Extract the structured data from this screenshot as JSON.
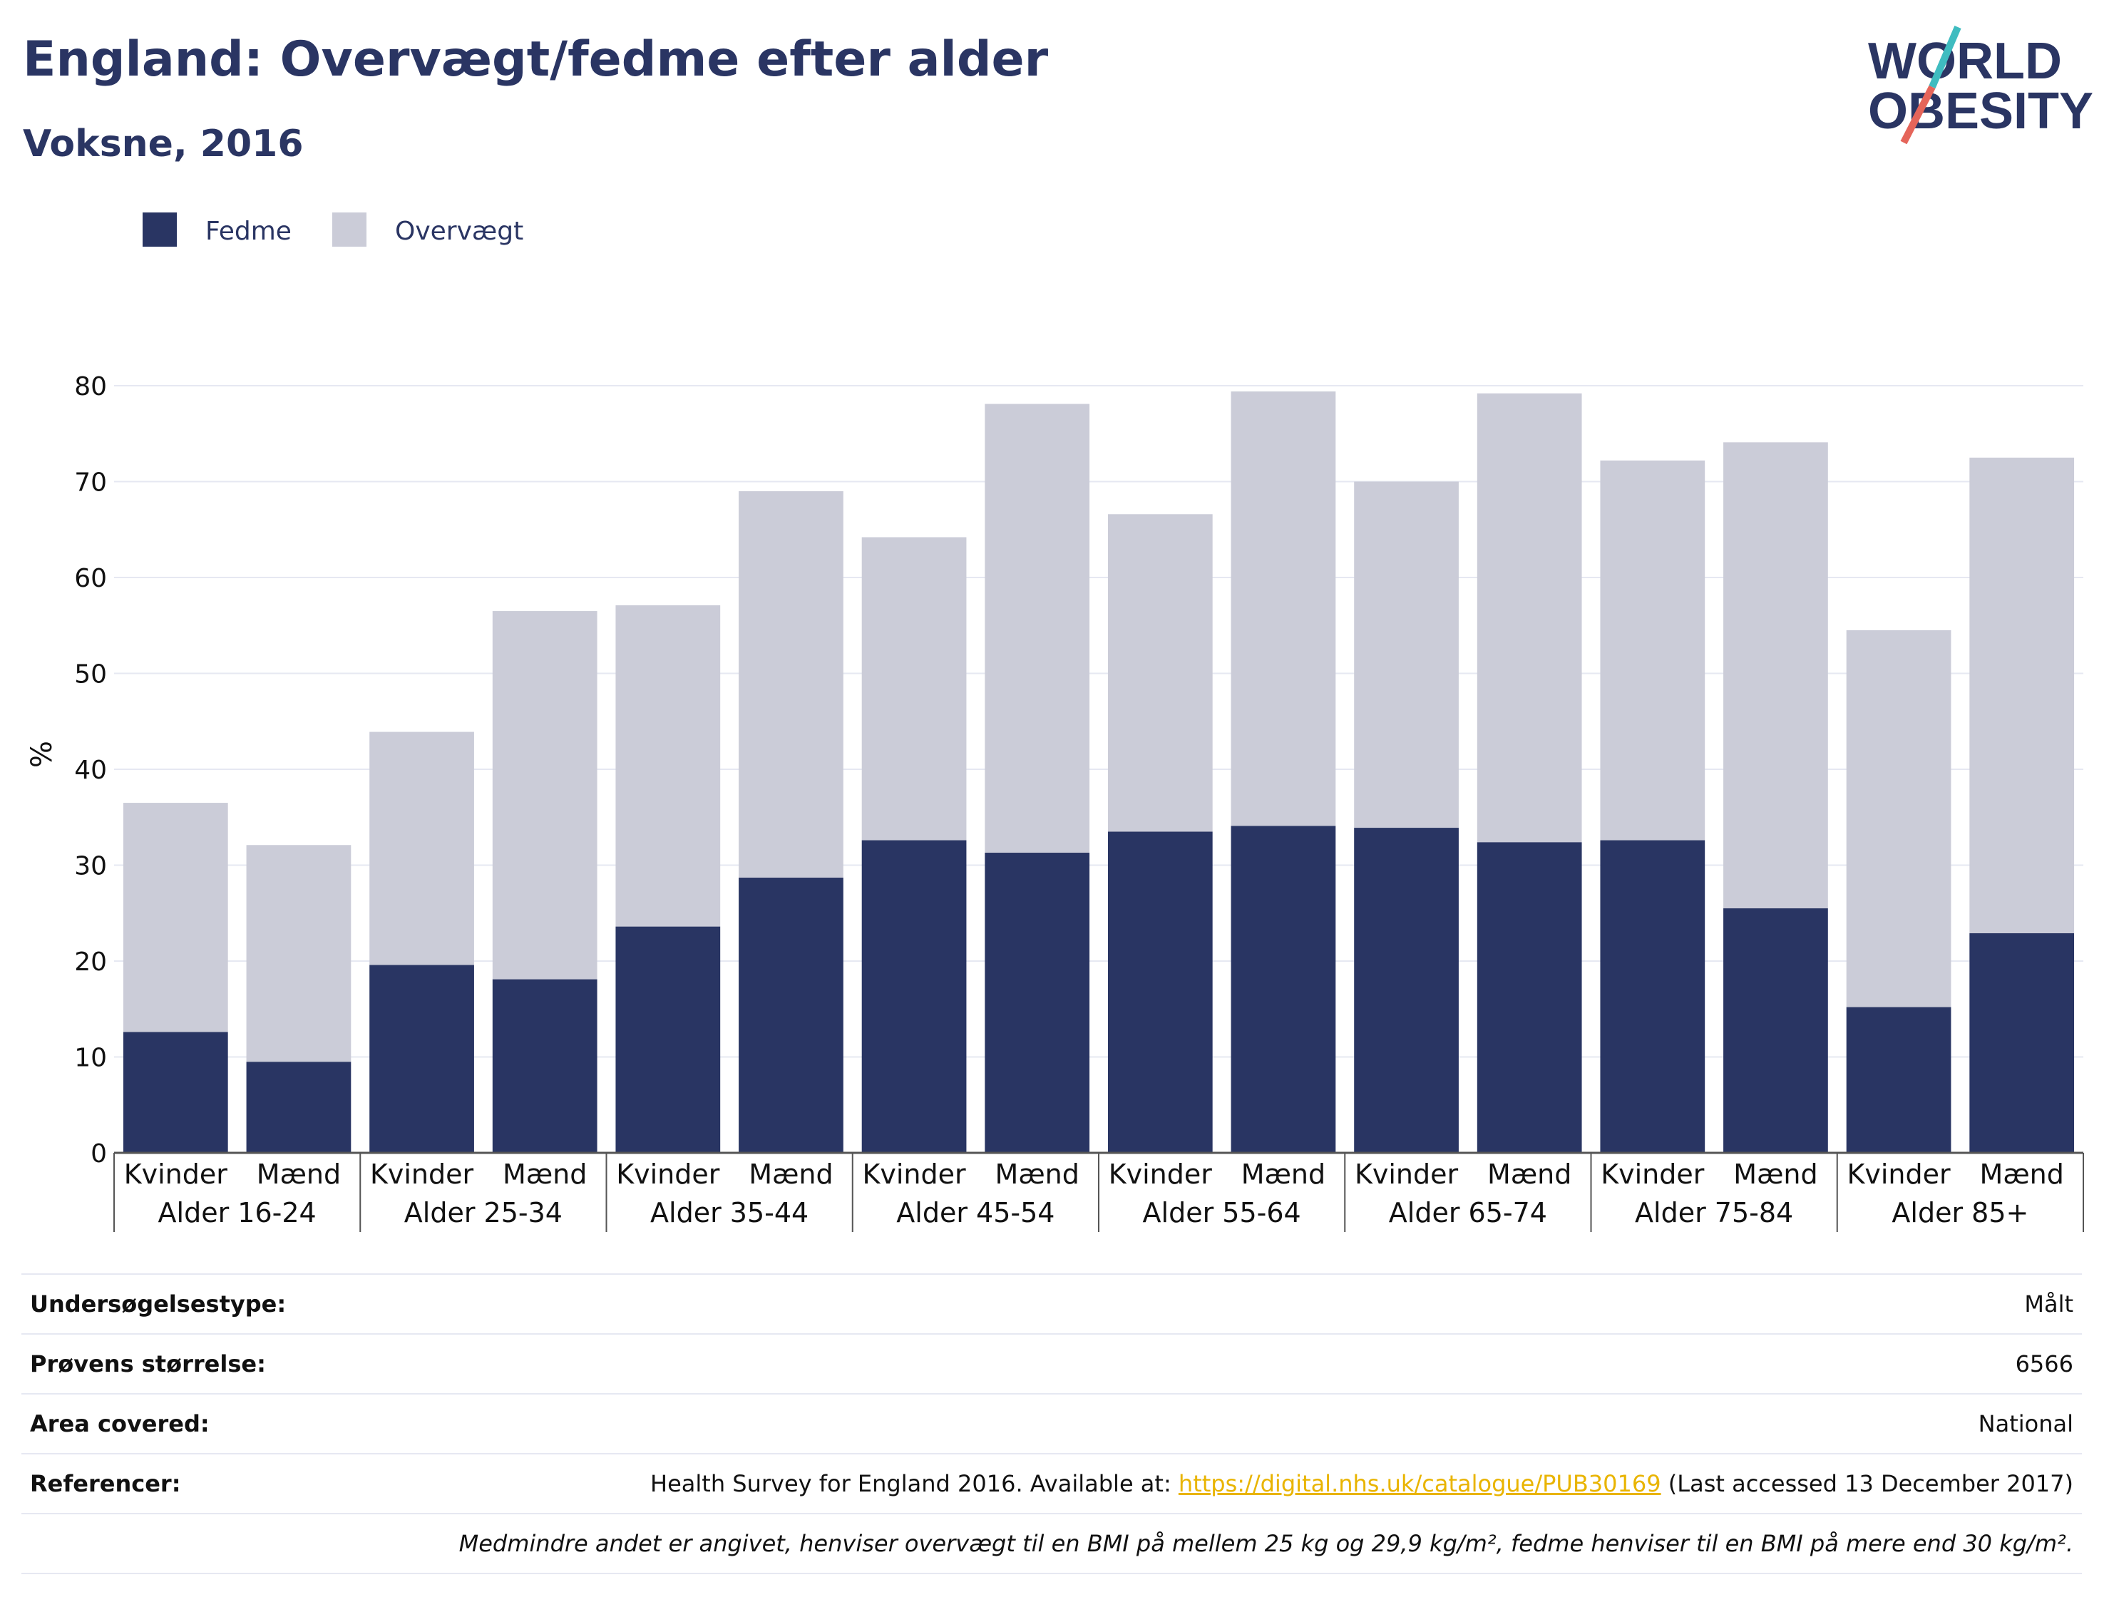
{
  "header": {
    "title": "England: Overvægt/fedme efter alder",
    "subtitle": "Voksne, 2016"
  },
  "logo": {
    "line1": "WORLD",
    "line2": "OBESITY",
    "colors": [
      "#3fbcc0",
      "#e5655a"
    ]
  },
  "chart_data": {
    "type": "bar",
    "stacked": true,
    "ylabel": "%",
    "ylim": [
      0,
      80
    ],
    "yticks": [
      0,
      10,
      20,
      30,
      40,
      50,
      60,
      70,
      80
    ],
    "grid": true,
    "legend_position": "top-left",
    "groups": [
      "Alder 16-24",
      "Alder 25-34",
      "Alder 35-44",
      "Alder 45-54",
      "Alder 55-64",
      "Alder 65-74",
      "Alder 75-84",
      "Alder 85+"
    ],
    "subcategories": [
      "Kvinder",
      "Mænd"
    ],
    "series": [
      {
        "name": "Fedme",
        "color": "#293563",
        "values": [
          12.6,
          9.5,
          19.6,
          18.1,
          23.6,
          28.7,
          32.6,
          31.3,
          33.5,
          34.1,
          33.9,
          32.4,
          32.6,
          25.5,
          15.2,
          22.9
        ]
      },
      {
        "name": "Overvægt",
        "color": "#cbccd8",
        "values": [
          23.9,
          22.6,
          24.3,
          38.4,
          33.5,
          40.3,
          31.6,
          46.8,
          33.1,
          45.3,
          36.1,
          46.8,
          39.6,
          48.6,
          39.3,
          49.6
        ]
      }
    ]
  },
  "meta": {
    "survey_type": {
      "label": "Undersøgelsestype:",
      "value": "Målt"
    },
    "sample_size": {
      "label": "Prøvens størrelse:",
      "value": "6566"
    },
    "area": {
      "label": "Area covered:",
      "value": "National"
    },
    "references": {
      "label": "Referencer:",
      "before": "Health Survey for England 2016. Available at: ",
      "link": "https://digital.nhs.uk/catalogue/PUB30169",
      "after": " (Last accessed 13 December 2017)"
    },
    "note": "Medmindre andet er angivet, henviser overvægt til en BMI på mellem 25 kg og 29,9 kg/m², fedme henviser til en BMI på mere end 30 kg/m²."
  }
}
